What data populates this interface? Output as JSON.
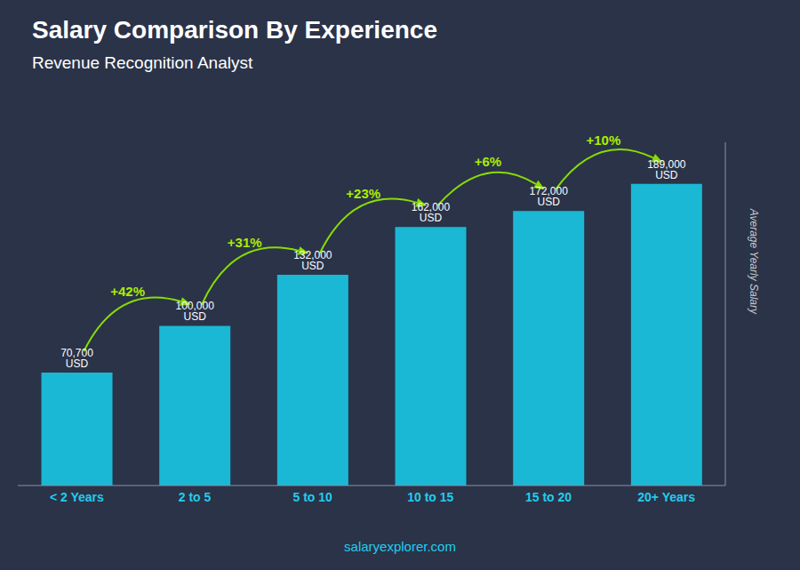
{
  "chart_data": {
    "type": "bar",
    "title": "Salary Comparison By Experience",
    "subtitle": "Revenue Recognition Analyst",
    "ylabel": "Average Yearly Salary",
    "categories": [
      "< 2 Years",
      "2 to 5",
      "5 to 10",
      "10 to 15",
      "15 to 20",
      "20+ Years"
    ],
    "values": [
      70700,
      100000,
      132000,
      162000,
      172000,
      189000
    ],
    "value_labels": [
      "70,700 USD",
      "100,000 USD",
      "132,000 USD",
      "162,000 USD",
      "172,000 USD",
      "189,000 USD"
    ],
    "data_labels": true,
    "color": "#1ab8d4",
    "ylim": [
      0,
      215000
    ],
    "tick_labels": "x",
    "grid": false,
    "annotations": [
      {
        "text": "+42%",
        "from": "< 2 Years",
        "to": "2 to 5"
      },
      {
        "text": "+31%",
        "from": "2 to 5",
        "to": "5 to 10"
      },
      {
        "text": "+23%",
        "from": "5 to 10",
        "to": "10 to 15"
      },
      {
        "text": "+6%",
        "from": "10 to 15",
        "to": "15 to 20"
      },
      {
        "text": "+10%",
        "from": "15 to 20",
        "to": "20+ Years"
      }
    ],
    "footer": "salaryexplorer.com"
  }
}
